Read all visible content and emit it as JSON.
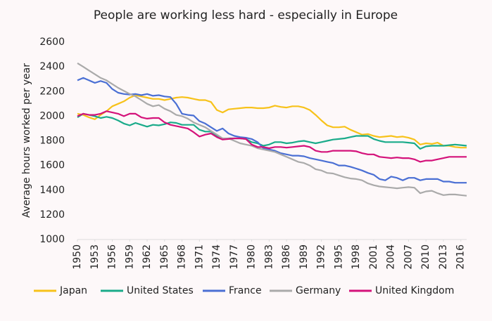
{
  "chart_data": {
    "type": "line",
    "title": "People are working less hard - especially in Europe",
    "y_label": "Average hours worked per year",
    "x": [
      1950,
      1951,
      1952,
      1953,
      1954,
      1955,
      1956,
      1957,
      1958,
      1959,
      1960,
      1961,
      1962,
      1963,
      1964,
      1965,
      1966,
      1967,
      1968,
      1969,
      1970,
      1971,
      1972,
      1973,
      1974,
      1975,
      1976,
      1977,
      1978,
      1979,
      1980,
      1981,
      1982,
      1983,
      1984,
      1985,
      1986,
      1987,
      1988,
      1989,
      1990,
      1991,
      1992,
      1993,
      1994,
      1995,
      1996,
      1997,
      1998,
      1999,
      2000,
      2001,
      2002,
      2003,
      2004,
      2005,
      2006,
      2007,
      2008,
      2009,
      2010,
      2011,
      2012,
      2013,
      2014,
      2015,
      2016,
      2017
    ],
    "series": [
      {
        "name": "Japan",
        "color": "#f7c21a",
        "values": [
          2020,
          2010,
          1990,
          1975,
          2010,
          2040,
          2080,
          2100,
          2120,
          2150,
          2170,
          2160,
          2150,
          2140,
          2140,
          2130,
          2140,
          2150,
          2155,
          2150,
          2140,
          2130,
          2130,
          2115,
          2050,
          2030,
          2055,
          2060,
          2065,
          2070,
          2070,
          2065,
          2065,
          2070,
          2085,
          2075,
          2070,
          2080,
          2080,
          2070,
          2050,
          2010,
          1965,
          1925,
          1910,
          1910,
          1915,
          1890,
          1870,
          1850,
          1855,
          1840,
          1830,
          1835,
          1840,
          1830,
          1835,
          1825,
          1810,
          1770,
          1780,
          1775,
          1785,
          1760,
          1760,
          1750,
          1745,
          1745
        ]
      },
      {
        "name": "United States",
        "color": "#1aab8a",
        "values": [
          1990,
          2020,
          2010,
          2000,
          1985,
          1995,
          1985,
          1965,
          1940,
          1925,
          1945,
          1930,
          1915,
          1930,
          1925,
          1935,
          1950,
          1945,
          1930,
          1930,
          1930,
          1890,
          1875,
          1875,
          1840,
          1815,
          1820,
          1820,
          1820,
          1815,
          1790,
          1780,
          1760,
          1770,
          1790,
          1790,
          1780,
          1785,
          1795,
          1800,
          1790,
          1780,
          1790,
          1800,
          1810,
          1815,
          1820,
          1830,
          1840,
          1840,
          1840,
          1815,
          1800,
          1790,
          1790,
          1790,
          1790,
          1785,
          1780,
          1735,
          1755,
          1760,
          1760,
          1760,
          1765,
          1770,
          1765,
          1760
        ]
      },
      {
        "name": "France",
        "color": "#4a6fd4",
        "values": [
          2290,
          2310,
          2290,
          2270,
          2285,
          2270,
          2220,
          2190,
          2180,
          2175,
          2180,
          2170,
          2180,
          2165,
          2170,
          2160,
          2155,
          2100,
          2020,
          2010,
          2005,
          1960,
          1940,
          1910,
          1880,
          1900,
          1860,
          1840,
          1830,
          1825,
          1815,
          1790,
          1740,
          1730,
          1720,
          1700,
          1690,
          1680,
          1680,
          1675,
          1660,
          1650,
          1640,
          1630,
          1620,
          1600,
          1600,
          1590,
          1575,
          1560,
          1540,
          1525,
          1490,
          1480,
          1510,
          1500,
          1480,
          1500,
          1500,
          1480,
          1490,
          1490,
          1490,
          1470,
          1470,
          1460,
          1460,
          1460
        ]
      },
      {
        "name": "Germany",
        "color": "#aaaaaa",
        "values": [
          2430,
          2400,
          2370,
          2340,
          2310,
          2290,
          2260,
          2230,
          2205,
          2180,
          2160,
          2130,
          2100,
          2080,
          2090,
          2060,
          2040,
          2010,
          2000,
          1980,
          1950,
          1930,
          1910,
          1880,
          1850,
          1820,
          1820,
          1800,
          1780,
          1770,
          1760,
          1740,
          1730,
          1720,
          1710,
          1690,
          1670,
          1650,
          1630,
          1620,
          1600,
          1570,
          1560,
          1540,
          1535,
          1520,
          1505,
          1495,
          1490,
          1480,
          1455,
          1440,
          1430,
          1425,
          1420,
          1415,
          1420,
          1425,
          1420,
          1375,
          1390,
          1395,
          1375,
          1360,
          1365,
          1365,
          1360,
          1355
        ]
      },
      {
        "name": "United Kingdom",
        "color": "#d4127a",
        "values": [
          2000,
          2020,
          2010,
          2010,
          2020,
          2040,
          2030,
          2020,
          2000,
          2020,
          2020,
          1990,
          1980,
          1985,
          1985,
          1950,
          1930,
          1920,
          1910,
          1900,
          1870,
          1835,
          1850,
          1860,
          1830,
          1810,
          1815,
          1820,
          1820,
          1815,
          1770,
          1750,
          1750,
          1740,
          1750,
          1750,
          1745,
          1750,
          1755,
          1760,
          1750,
          1720,
          1710,
          1710,
          1720,
          1720,
          1720,
          1720,
          1715,
          1700,
          1690,
          1690,
          1670,
          1665,
          1660,
          1665,
          1660,
          1660,
          1650,
          1630,
          1640,
          1640,
          1650,
          1660,
          1670,
          1670,
          1670,
          1670
        ]
      }
    ],
    "xlim": [
      1950,
      2017
    ],
    "xticks": [
      1950,
      1953,
      1956,
      1959,
      1962,
      1965,
      1968,
      1971,
      1974,
      1977,
      1980,
      1983,
      1986,
      1989,
      1992,
      1995,
      1998,
      2001,
      2004,
      2007,
      2010,
      2013,
      2016
    ],
    "ylim": [
      1000,
      2600
    ],
    "yticks": [
      1000,
      1200,
      1400,
      1600,
      1800,
      2000,
      2200,
      2400,
      2600
    ],
    "grid": false,
    "legend": "bottom"
  }
}
